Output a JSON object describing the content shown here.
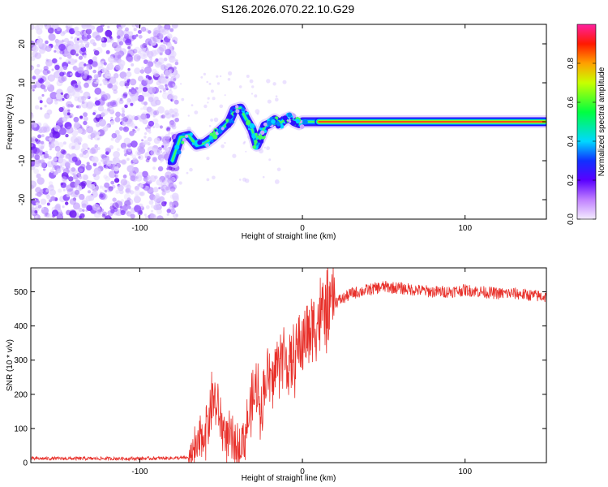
{
  "title": "S126.2026.070.22.10.G29",
  "chart_data": [
    {
      "type": "heatmap",
      "xlabel": "Height of straight line (km)",
      "ylabel": "Frequency (Hz)",
      "xlim": [
        -167,
        150
      ],
      "ylim": [
        -25,
        25
      ],
      "xticks": [
        "-100",
        "0",
        "100"
      ],
      "yticks": [
        "20",
        "10",
        "0",
        "-10",
        "-20"
      ],
      "colorbar": {
        "label": "Normalized spectral amplitude",
        "range": [
          0.0,
          1.0
        ],
        "ticks": [
          "0.0",
          "0.2",
          "0.4",
          "0.6",
          "0.8"
        ]
      },
      "trace": {
        "x": [
          -80,
          -75,
          -70,
          -65,
          -60,
          -55,
          -50,
          -45,
          -42,
          -38,
          -35,
          -31,
          -28,
          -26,
          -23,
          -20,
          -17,
          -14,
          -11,
          -8,
          -5,
          -2,
          0,
          5,
          10,
          150
        ],
        "y": [
          -10,
          -4,
          -3.5,
          -6,
          -5.5,
          -4,
          -2,
          0,
          3,
          3.5,
          1,
          -2,
          -6,
          -4,
          -1,
          -0.5,
          0.5,
          -0.5,
          0.5,
          1,
          0,
          -0.5,
          0,
          0,
          0,
          0
        ],
        "noise_region_x": [
          -167,
          -80
        ]
      }
    },
    {
      "type": "line",
      "xlabel": "Height of straight line (km)",
      "ylabel": "SNR (10 * v/v)",
      "xlim": [
        -167,
        150
      ],
      "ylim": [
        0,
        570
      ],
      "xticks": [
        "-100",
        "0",
        "100"
      ],
      "yticks": [
        "0",
        "100",
        "200",
        "300",
        "400",
        "500"
      ],
      "series": [
        {
          "name": "SNR",
          "color": "#e8302a",
          "x": [
            -167,
            -100,
            -70,
            -65,
            -62,
            -58,
            -55,
            -52,
            -48,
            -44,
            -40,
            -36,
            -32,
            -28,
            -25,
            -22,
            -19,
            -16,
            -13,
            -10,
            -7,
            -5,
            -3,
            0,
            3,
            6,
            10,
            15,
            20,
            25,
            30,
            40,
            50,
            60,
            70,
            80,
            90,
            100,
            110,
            120,
            130,
            140,
            150
          ],
          "values": [
            12,
            12,
            14,
            35,
            70,
            120,
            200,
            150,
            90,
            60,
            40,
            70,
            150,
            220,
            160,
            260,
            230,
            280,
            320,
            300,
            260,
            310,
            340,
            350,
            380,
            400,
            420,
            450,
            470,
            480,
            495,
            505,
            515,
            510,
            505,
            500,
            500,
            505,
            500,
            495,
            495,
            490,
            485
          ]
        }
      ]
    }
  ]
}
